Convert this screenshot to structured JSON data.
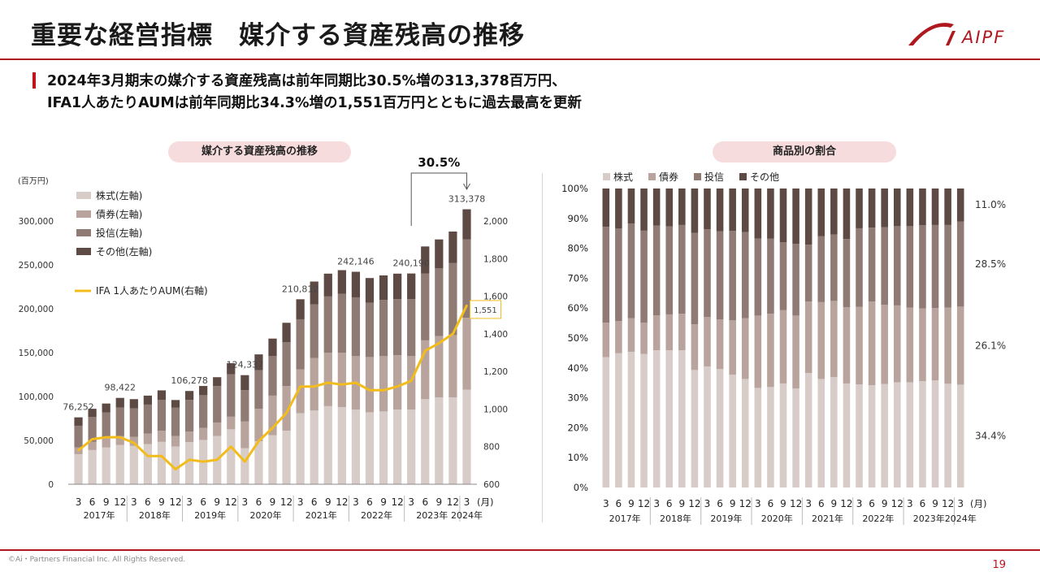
{
  "page": {
    "title": "重要な経営指標　媒介する資産残高の推移",
    "logo_text": "AIPF",
    "headline_1": "2024年3月期末の媒介する資産残高は前年同期比30.5%増の313,378百万円、",
    "headline_2": "IFA1人あたりAUMは前年同期比34.3%増の1,551百万円とともに過去最高を更新",
    "copyright": "©Ai・Partners Financial Inc. All Rights Reserved.",
    "page_number": "19"
  },
  "colors": {
    "accent": "#c0111f",
    "stock": "#d7ccc8",
    "bond": "#b8a49c",
    "trust": "#8f7a74",
    "other": "#5e4a44",
    "line": "#f2bc1c",
    "pill": "#f6dcdc"
  },
  "chart_data": [
    {
      "type": "bar",
      "stacked": true,
      "title": "媒介する資産残高の推移",
      "y_unit_label": "(百万円)",
      "x_unit_label": "(月)",
      "ylim": [
        0,
        300000
      ],
      "yticks": [
        "0",
        "50,000",
        "100,000",
        "150,000",
        "200,000",
        "250,000",
        "300,000"
      ],
      "y2lim": [
        600,
        2000
      ],
      "y2ticks": [
        "600",
        "800",
        "1,000",
        "1,200",
        "1,400",
        "1,600",
        "1,800",
        "2,000"
      ],
      "legend": [
        "株式(左軸)",
        "債券(左軸)",
        "投信(左軸)",
        "その他(左軸)"
      ],
      "line_legend": "IFA 1人あたりAUM(右軸)",
      "months": [
        "3",
        "6",
        "9",
        "12",
        "3",
        "6",
        "9",
        "12",
        "3",
        "6",
        "9",
        "12",
        "3",
        "6",
        "9",
        "12",
        "3",
        "6",
        "9",
        "12",
        "3",
        "6",
        "9",
        "12",
        "3",
        "6",
        "9",
        "12",
        "3"
      ],
      "years": [
        "2017年",
        "2018年",
        "2019年",
        "2020年",
        "2021年",
        "2022年",
        "2023年",
        "2024年"
      ],
      "totals": [
        76252,
        86000,
        92000,
        98422,
        97000,
        101000,
        107000,
        96000,
        106278,
        112000,
        122000,
        138000,
        124337,
        148000,
        166000,
        184000,
        210812,
        231000,
        240000,
        244000,
        242146,
        235000,
        238000,
        240000,
        240190,
        271000,
        279000,
        288000,
        313378
      ],
      "stock": [
        34300,
        39000,
        41900,
        44800,
        43700,
        45800,
        48300,
        43000,
        48100,
        50500,
        55000,
        62600,
        41000,
        49000,
        56000,
        61000,
        81000,
        84000,
        89000,
        88000,
        85000,
        82000,
        83000,
        85000,
        85000,
        97000,
        99000,
        99000,
        107800
      ],
      "bond": [
        7600,
        9300,
        10300,
        10300,
        10400,
        11900,
        12600,
        11900,
        11800,
        13700,
        15400,
        14400,
        30500,
        37000,
        45000,
        51000,
        50000,
        60000,
        61000,
        62000,
        61000,
        63000,
        63000,
        62000,
        61000,
        67000,
        70000,
        71000,
        81800
      ],
      "trust": [
        24800,
        28300,
        29500,
        32200,
        32300,
        33100,
        35400,
        32300,
        36200,
        37300,
        41500,
        48400,
        35700,
        44000,
        45000,
        50000,
        57000,
        61000,
        64000,
        67000,
        67000,
        62000,
        64000,
        64000,
        65000,
        76000,
        77000,
        82000,
        89300
      ],
      "other": [
        9552,
        9400,
        10300,
        11122,
        10600,
        10200,
        10700,
        8800,
        10178,
        10500,
        10100,
        12600,
        17137,
        18000,
        20000,
        22000,
        22812,
        26000,
        26000,
        27000,
        29146,
        28000,
        28000,
        29000,
        29190,
        31000,
        33000,
        36000,
        34478
      ],
      "aum_per_ifa": [
        780,
        840,
        850,
        850,
        820,
        750,
        750,
        680,
        730,
        720,
        730,
        800,
        720,
        830,
        900,
        980,
        1120,
        1120,
        1140,
        1130,
        1140,
        1100,
        1100,
        1120,
        1150,
        1310,
        1350,
        1400,
        1551
      ],
      "labels": [
        {
          "index": 0,
          "text": "76,252"
        },
        {
          "index": 3,
          "text": "98,422"
        },
        {
          "index": 8,
          "text": "106,278"
        },
        {
          "index": 12,
          "text": "124,337"
        },
        {
          "index": 16,
          "text": "210,812"
        },
        {
          "index": 20,
          "text": "242,146"
        },
        {
          "index": 24,
          "text": "240,190"
        },
        {
          "index": 28,
          "text": "313,378"
        }
      ],
      "line_end_label": "1,551",
      "growth_label": "30.5%"
    },
    {
      "type": "bar",
      "stacked": true,
      "percent": true,
      "title": "商品別の割合",
      "ylim": [
        0,
        100
      ],
      "yticks": [
        "0%",
        "10%",
        "20%",
        "30%",
        "40%",
        "50%",
        "60%",
        "70%",
        "80%",
        "90%",
        "100%"
      ],
      "legend": [
        "株式",
        "債券",
        "投信",
        "その他"
      ],
      "x_unit_label": "(月)",
      "months": [
        "3",
        "6",
        "9",
        "12",
        "3",
        "6",
        "9",
        "12",
        "3",
        "6",
        "9",
        "12",
        "3",
        "6",
        "9",
        "12",
        "3",
        "6",
        "9",
        "12",
        "3",
        "6",
        "9",
        "12",
        "3",
        "6",
        "9",
        "12",
        "3"
      ],
      "years": [
        "2017年",
        "2018年",
        "2019年",
        "2020年",
        "2021年",
        "2022年",
        "2023年",
        "2024年"
      ],
      "stock": [
        43.6,
        44.9,
        45.4,
        44.7,
        45.9,
        45.9,
        45.9,
        39.3,
        40.5,
        39.6,
        37.7,
        36.3,
        33.3,
        33.6,
        34.8,
        33.1,
        38.3,
        36.3,
        36.9,
        34.8,
        34.5,
        34.2,
        34.6,
        35.2,
        35.2,
        35.6,
        35.8,
        34.7,
        34.4
      ],
      "bond": [
        11.5,
        10.8,
        11.2,
        10.4,
        11.7,
        12.0,
        12.2,
        15.3,
        16.5,
        16.6,
        18.2,
        20.3,
        24.2,
        24.5,
        24.5,
        24.4,
        23.9,
        25.7,
        25.5,
        25.5,
        25.9,
        28.0,
        26.5,
        25.7,
        25.0,
        24.3,
        24.2,
        25.5,
        26.1
      ],
      "trust": [
        32.1,
        30.9,
        31.7,
        30.8,
        30.0,
        29.4,
        29.7,
        30.6,
        29.4,
        29.5,
        29.9,
        28.8,
        25.8,
        25.1,
        22.7,
        24.0,
        19.0,
        22.1,
        22.2,
        22.8,
        26.3,
        24.7,
        26.0,
        26.5,
        27.2,
        27.8,
        27.8,
        27.6,
        28.5
      ],
      "other": [
        12.8,
        13.4,
        11.7,
        14.1,
        12.4,
        12.7,
        12.2,
        14.8,
        13.6,
        14.3,
        14.2,
        14.6,
        16.7,
        16.8,
        18.0,
        18.5,
        18.8,
        15.9,
        15.4,
        16.9,
        13.3,
        13.1,
        12.9,
        12.6,
        12.6,
        12.3,
        12.2,
        12.2,
        11.0
      ],
      "end_labels": {
        "stock": "34.4%",
        "bond": "26.1%",
        "trust": "28.5%",
        "other": "11.0%"
      }
    }
  ]
}
